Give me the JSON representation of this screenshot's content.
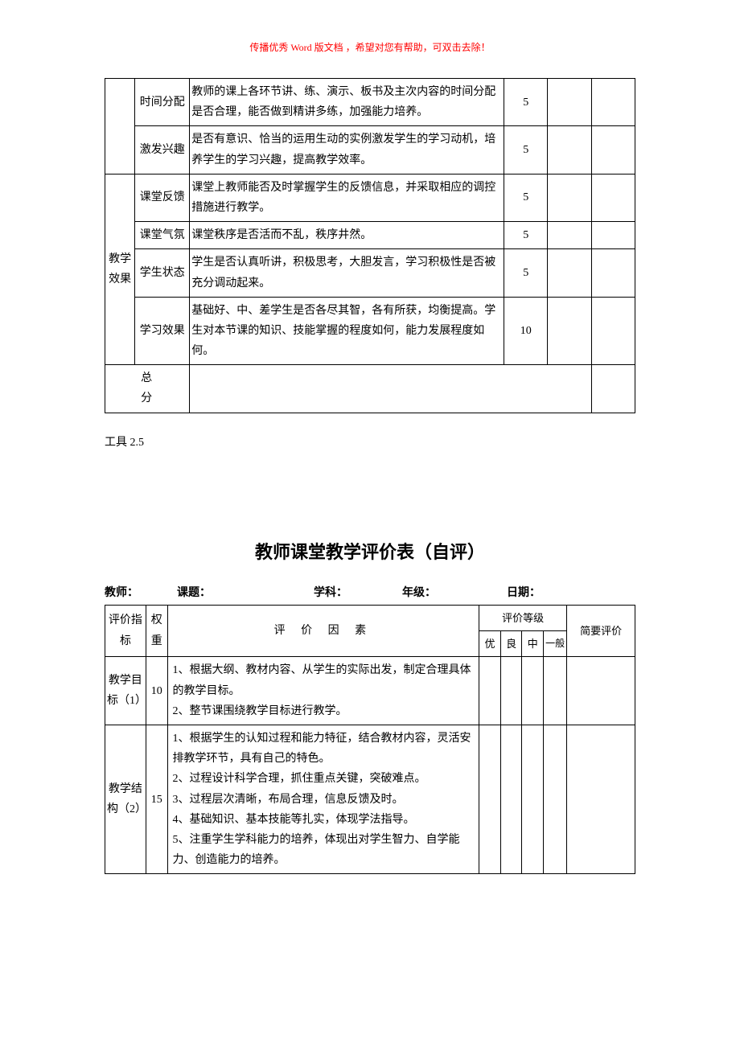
{
  "header_note": "传播优秀 Word 版文档 ，希望对您有帮助，可双击去除！",
  "table1": {
    "rows": [
      {
        "cat": "",
        "sub": "时间分配",
        "desc": "教师的课上各环节讲、练、演示、板书及主次内容的时间分配是否合理，能否做到精讲多练，加强能力培养。",
        "score": "5"
      },
      {
        "cat": "",
        "sub": "激发兴趣",
        "desc": "是否有意识、恰当的运用生动的实例激发学生的学习动机，培养学生的学习兴趣，提高教学效率。",
        "score": "5"
      },
      {
        "cat": "教学效果",
        "sub": "课堂反馈",
        "desc": "课堂上教师能否及时掌握学生的反馈信息，并采取相应的调控措施进行教学。",
        "score": "5"
      },
      {
        "cat": "",
        "sub": "课堂气氛",
        "desc": "课堂秩序是否活而不乱，秩序井然。",
        "score": "5"
      },
      {
        "cat": "",
        "sub": "学生状态",
        "desc": "学生是否认真听讲，积极思考，大胆发言，学习积极性是否被充分调动起来。",
        "score": "5"
      },
      {
        "cat": "",
        "sub": "学习效果",
        "desc": "基础好、中、差学生是否各尽其智，各有所获，均衡提高。学生对本节课的知识、技能掌握的程度如何，能力发展程度如何。",
        "score": "10"
      }
    ],
    "total_label": "总分"
  },
  "tool_label": "工具 2.5",
  "title2": "教师课堂教学评价表（自评）",
  "form_labels": {
    "teacher": "教师：",
    "topic": "课题：",
    "subject": "学科：",
    "grade": "年级：",
    "date": "日期："
  },
  "table2": {
    "head": {
      "index": "评价指标",
      "weight": "权重",
      "factor": "评 价 因 素",
      "grade_group": "评价等级",
      "g1": "优",
      "g2": "良",
      "g3": "中",
      "g4": "一般",
      "brief": "简要评价"
    },
    "rows": [
      {
        "index": "教学目标（1）",
        "weight": "10",
        "factor": "1、根据大纲、教材内容、从学生的实际出发，制定合理具体的教学目标。\n2、整节课围绕教学目标进行教学。"
      },
      {
        "index": "教学结构（2）",
        "weight": "15",
        "factor": "1、根据学生的认知过程和能力特征，结合教材内容，灵活安排教学环节，具有自己的特色。\n2、过程设计科学合理，抓住重点关键，突破难点。\n3、过程层次清晰，布局合理，信息反馈及时。\n4、基础知识、基本技能等扎实，体现学法指导。\n5、注重学生学科能力的培养，体现出对学生智力、自学能力、创造能力的培养。"
      }
    ]
  },
  "colors": {
    "header_note": "#ff0000",
    "text": "#000000",
    "border": "#000000",
    "background": "#ffffff"
  }
}
